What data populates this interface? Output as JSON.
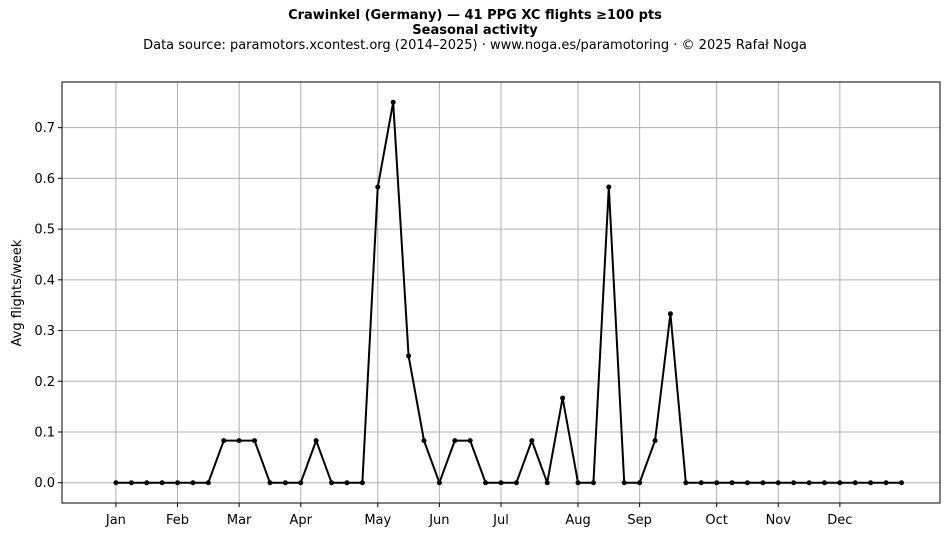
{
  "header": {
    "title": "Crawinkel (Germany)  —  41 PPG XC flights ≥100 pts",
    "subtitle": "Seasonal activity",
    "source": "Data source: paramotors.xcontest.org (2014–2025)  ·  www.noga.es/paramotoring  ·  © 2025 Rafał Noga"
  },
  "chart_data": {
    "type": "line",
    "title": "Crawinkel (Germany)  —  41 PPG XC flights ≥100 pts",
    "subtitle": "Seasonal activity",
    "xlabel": "",
    "ylabel": "Avg flights/week",
    "x_unit": "week of year",
    "xlim": [
      -2.5,
      54.5
    ],
    "ylim": [
      -0.04,
      0.79
    ],
    "y_ticks": [
      0.0,
      0.1,
      0.2,
      0.3,
      0.4,
      0.5,
      0.6,
      0.7
    ],
    "y_tick_labels": [
      "0.0",
      "0.1",
      "0.2",
      "0.3",
      "0.4",
      "0.5",
      "0.6",
      "0.7"
    ],
    "x_ticks": [
      1,
      5,
      9,
      13,
      18,
      22,
      26,
      31,
      35,
      40,
      44,
      48
    ],
    "x_tick_labels": [
      "Jan",
      "Feb",
      "Mar",
      "Apr",
      "May",
      "Jun",
      "Jul",
      "Aug",
      "Sep",
      "Oct",
      "Nov",
      "Dec"
    ],
    "grid": true,
    "legend": "none",
    "series": [
      {
        "color": "#000000",
        "marker": "circle",
        "x": [
          1,
          2,
          3,
          4,
          5,
          6,
          7,
          8,
          9,
          10,
          11,
          12,
          13,
          14,
          15,
          16,
          17,
          18,
          19,
          20,
          21,
          22,
          23,
          24,
          25,
          26,
          27,
          28,
          29,
          30,
          31,
          32,
          33,
          34,
          35,
          36,
          37,
          38,
          39,
          40,
          41,
          42,
          43,
          44,
          45,
          46,
          47,
          48,
          49,
          50,
          51,
          52
        ],
        "values": [
          0,
          0,
          0,
          0,
          0,
          0,
          0,
          0.083,
          0.083,
          0.083,
          0,
          0,
          0,
          0.083,
          0,
          0,
          0,
          0.583,
          0.75,
          0.25,
          0.083,
          0,
          0.083,
          0.083,
          0,
          0,
          0,
          0.083,
          0,
          0.167,
          0,
          0,
          0.583,
          0,
          0,
          0.083,
          0.333,
          0,
          0,
          0,
          0,
          0,
          0,
          0,
          0,
          0,
          0,
          0,
          0,
          0,
          0,
          0
        ]
      }
    ]
  }
}
